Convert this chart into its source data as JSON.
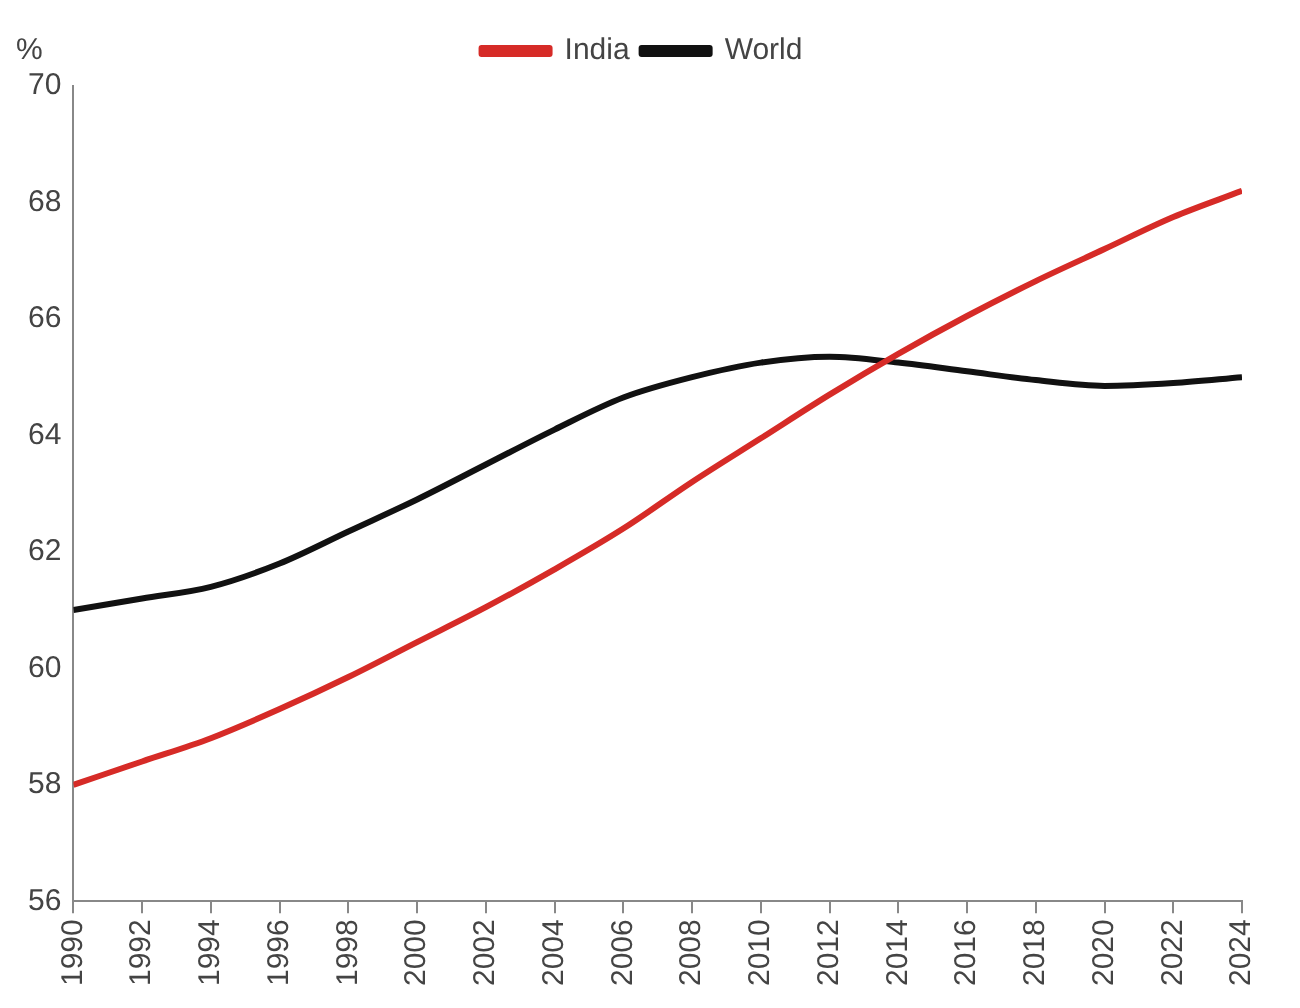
{
  "chart_data": {
    "type": "line",
    "ylabel": "%",
    "x": [
      1990,
      1992,
      1994,
      1996,
      1998,
      2000,
      2002,
      2004,
      2006,
      2008,
      2010,
      2012,
      2014,
      2016,
      2018,
      2020,
      2022,
      2024
    ],
    "series": [
      {
        "name": "India",
        "color": "#d62b27",
        "values": [
          58.0,
          58.4,
          58.8,
          59.3,
          59.85,
          60.45,
          61.05,
          61.7,
          62.4,
          63.2,
          63.95,
          64.7,
          65.4,
          66.05,
          66.65,
          67.2,
          67.75,
          68.2
        ]
      },
      {
        "name": "World",
        "color": "#111111",
        "values": [
          61.0,
          61.2,
          61.4,
          61.8,
          62.35,
          62.9,
          63.5,
          64.1,
          64.65,
          65.0,
          65.25,
          65.35,
          65.25,
          65.1,
          64.95,
          64.85,
          64.9,
          65.0
        ]
      }
    ],
    "xlim": [
      1990,
      2024
    ],
    "xticks": [
      1990,
      1992,
      1994,
      1996,
      1998,
      2000,
      2002,
      2004,
      2006,
      2008,
      2010,
      2012,
      2014,
      2016,
      2018,
      2020,
      2022,
      2024
    ],
    "ylim": [
      56,
      70
    ],
    "yticks": [
      56,
      58,
      60,
      62,
      64,
      66,
      68,
      70
    ],
    "grid": false,
    "legend": "top",
    "marker": "none",
    "line_style": "solid"
  }
}
